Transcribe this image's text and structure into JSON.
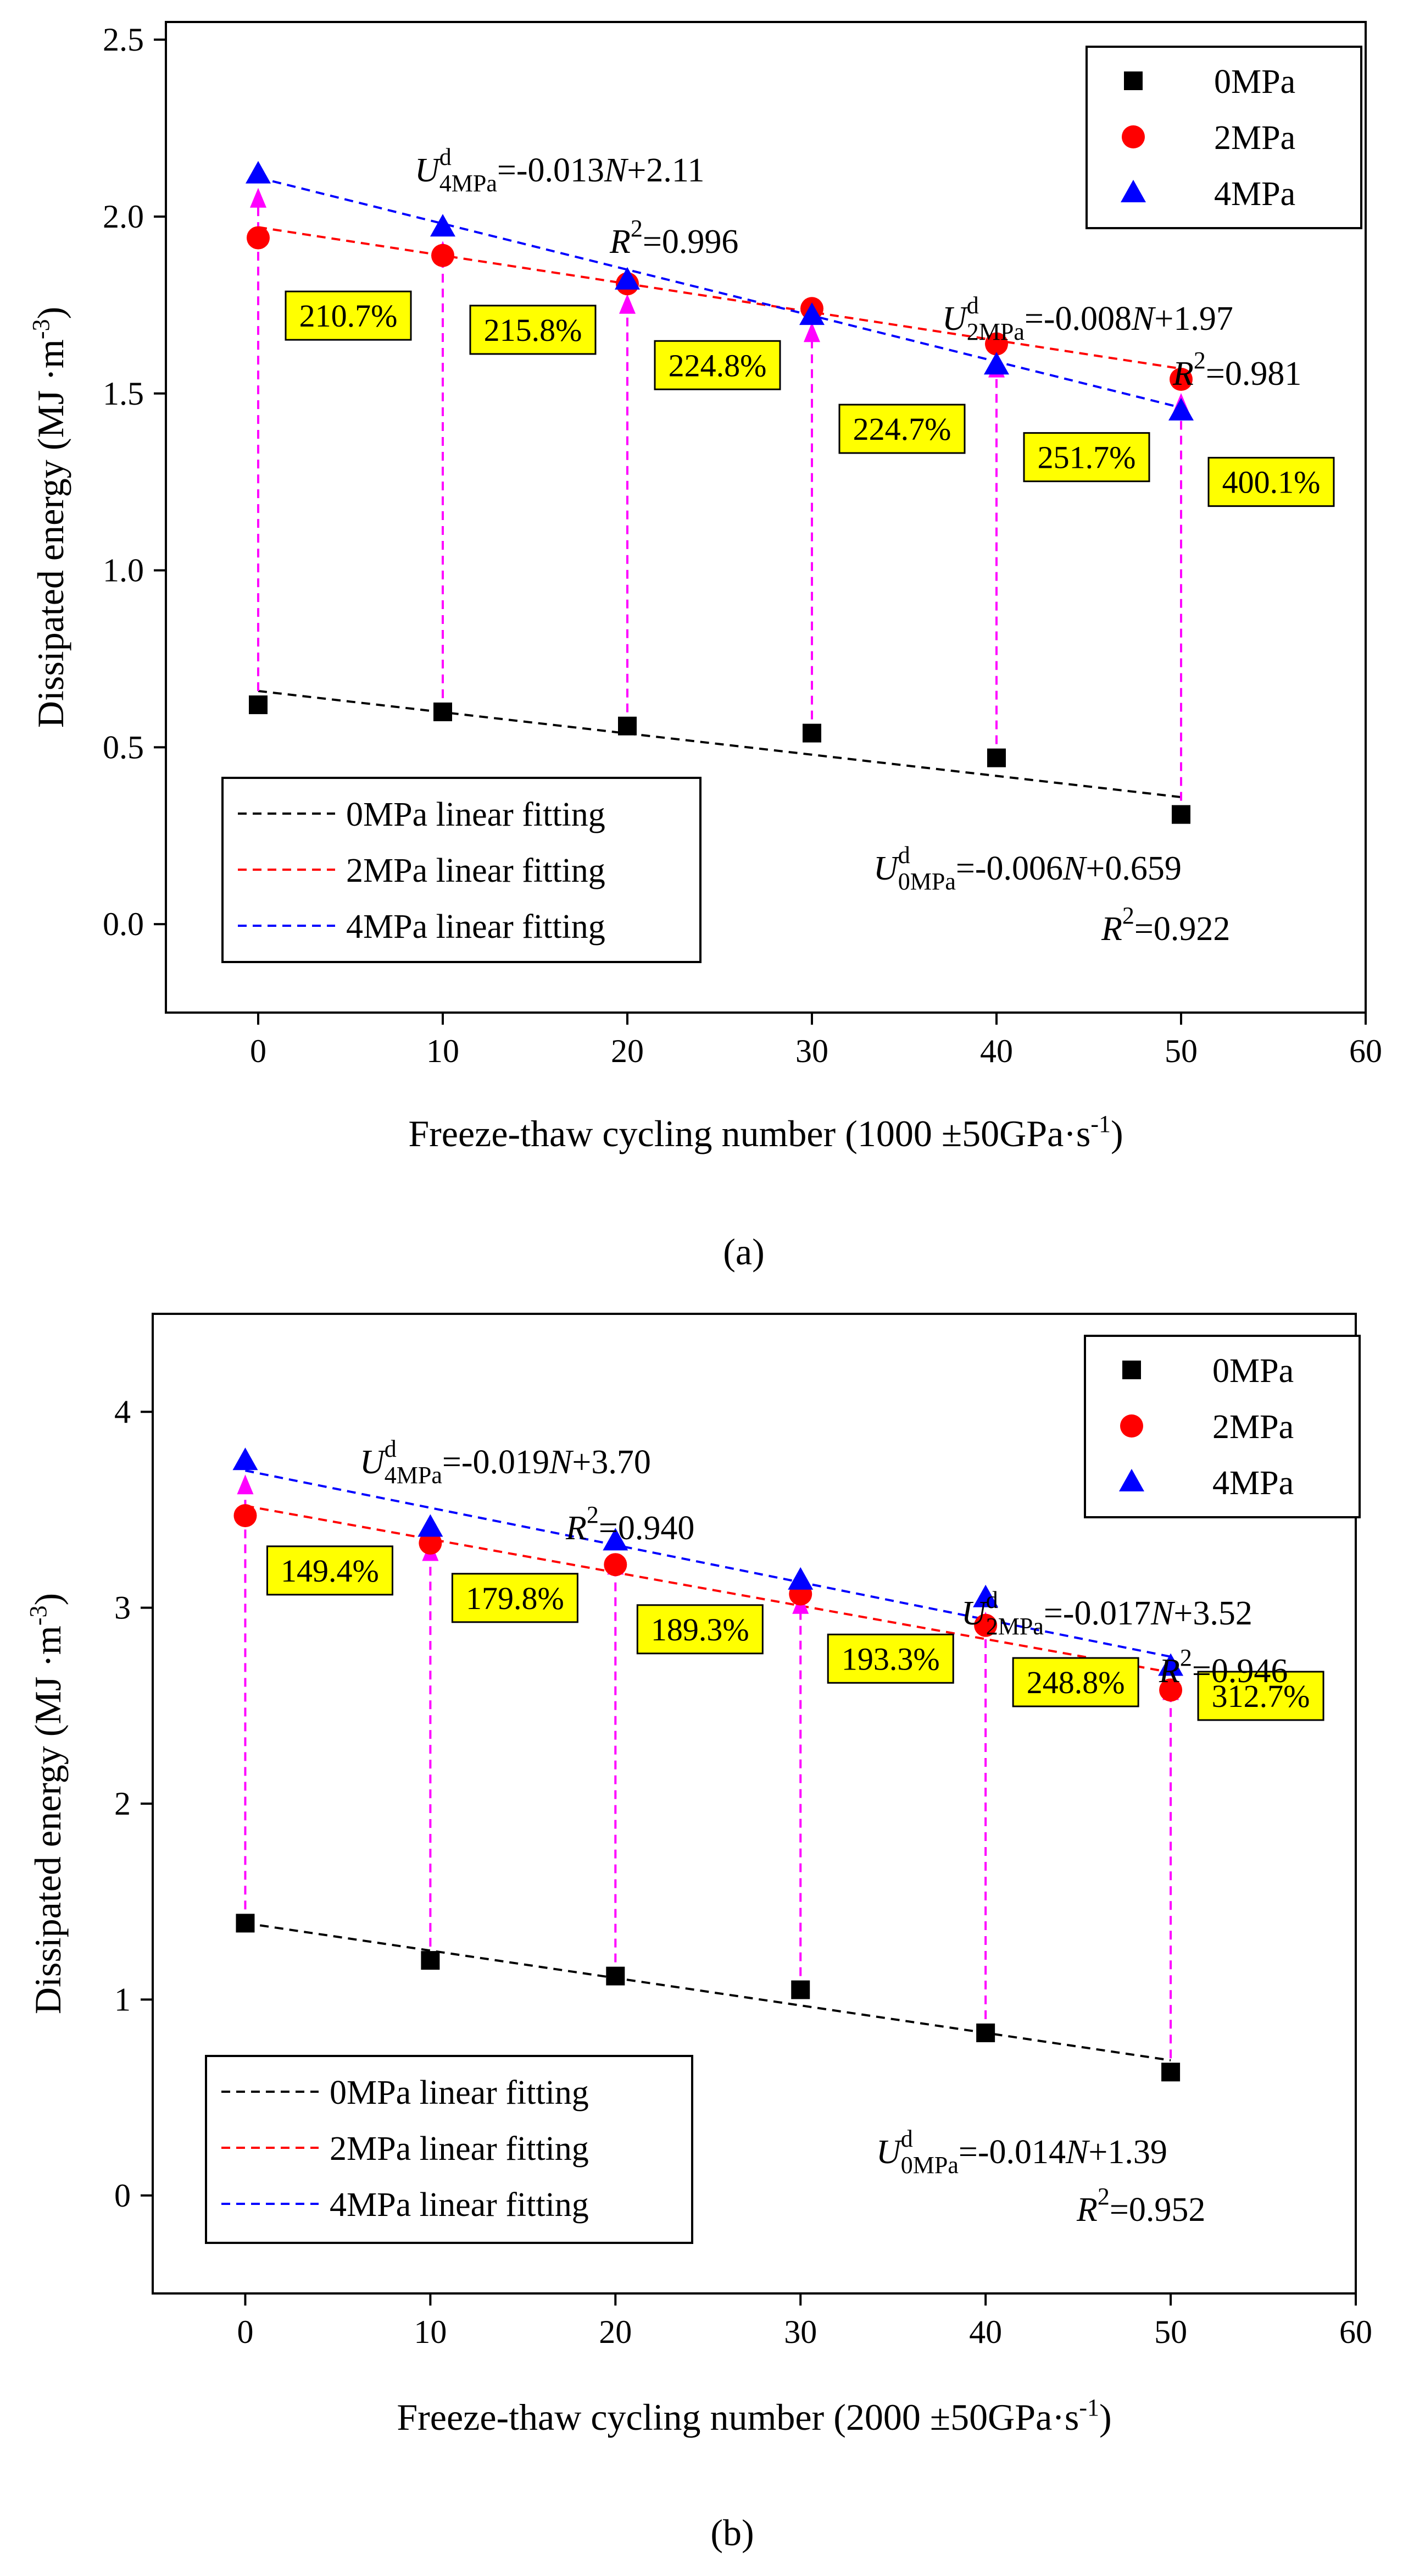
{
  "chart_data": [
    {
      "type": "scatter",
      "panel": "a",
      "caption": "(a)",
      "xlabel": "Freeze-thaw cycling number (1000 ±50GPa·s",
      "xlabel_sup": "-1",
      "xlabel_close": ")",
      "ylabel": "Dissipated energy (MJ ·m",
      "ylabel_sup": "-3",
      "ylabel_close": ")",
      "xlim": [
        -5,
        60
      ],
      "ylim": [
        -0.25,
        2.55
      ],
      "xticks": [
        0,
        10,
        20,
        30,
        40,
        50,
        60
      ],
      "xtick_labels": [
        "0",
        "10",
        "20",
        "30",
        "40",
        "50",
        "60"
      ],
      "yticks": [
        0.0,
        0.5,
        1.0,
        1.5,
        2.0,
        2.5
      ],
      "ytick_labels": [
        "0.0",
        "0.5",
        "1.0",
        "1.5",
        "2.0",
        "2.5"
      ],
      "x": [
        0,
        10,
        20,
        30,
        40,
        50
      ],
      "series": [
        {
          "name": "0MPa",
          "marker": "square",
          "color": "#000000",
          "values": [
            0.62,
            0.6,
            0.56,
            0.54,
            0.47,
            0.31
          ]
        },
        {
          "name": "2MPa",
          "marker": "circle",
          "color": "#ff0000",
          "values": [
            1.94,
            1.89,
            1.81,
            1.74,
            1.64,
            1.54
          ]
        },
        {
          "name": "4MPa",
          "marker": "triangle",
          "color": "#0000ff",
          "values": [
            2.12,
            1.97,
            1.82,
            1.72,
            1.58,
            1.45
          ]
        }
      ],
      "fits": [
        {
          "name": "0MPa linear fitting",
          "color": "#000000",
          "slope": -0.006,
          "intercept": 0.659
        },
        {
          "name": "2MPa linear fitting",
          "color": "#ff0000",
          "slope": -0.008,
          "intercept": 1.97
        },
        {
          "name": "4MPa linear fitting",
          "color": "#0000ff",
          "slope": -0.013,
          "intercept": 2.11
        }
      ],
      "increases": [
        "210.7%",
        "215.8%",
        "224.8%",
        "224.7%",
        "251.7%",
        "400.1%"
      ],
      "equations": [
        {
          "sub": "4MPa",
          "rhs": "=-0.013",
          "n": "N",
          "tail": "+2.11",
          "r2": "=0.996"
        },
        {
          "sub": "2MPa",
          "rhs": "=-0.008",
          "n": "N",
          "tail": "+1.97",
          "r2": "=0.981"
        },
        {
          "sub": "0MPa",
          "rhs": "=-0.006",
          "n": "N",
          "tail": "+0.659",
          "r2": "=0.922"
        }
      ]
    },
    {
      "type": "scatter",
      "panel": "b",
      "caption": "(b)",
      "xlabel": "Freeze-thaw cycling number (2000 ±50GPa·s",
      "xlabel_sup": "-1",
      "xlabel_close": ")",
      "ylabel": "Dissipated energy (MJ ·m",
      "ylabel_sup": "-3",
      "ylabel_close": ")",
      "xlim": [
        -5,
        60
      ],
      "ylim": [
        -0.5,
        4.5
      ],
      "xticks": [
        0,
        10,
        20,
        30,
        40,
        50,
        60
      ],
      "xtick_labels": [
        "0",
        "10",
        "20",
        "30",
        "40",
        "50",
        "60"
      ],
      "yticks": [
        0,
        1,
        2,
        3,
        4
      ],
      "ytick_labels": [
        "0",
        "1",
        "2",
        "3",
        "4"
      ],
      "x": [
        0,
        10,
        20,
        30,
        40,
        50
      ],
      "series": [
        {
          "name": "0MPa",
          "marker": "square",
          "color": "#000000",
          "values": [
            1.39,
            1.2,
            1.12,
            1.05,
            0.83,
            0.63
          ]
        },
        {
          "name": "2MPa",
          "marker": "circle",
          "color": "#ff0000",
          "values": [
            3.47,
            3.33,
            3.22,
            3.07,
            2.91,
            2.58
          ]
        },
        {
          "name": "4MPa",
          "marker": "triangle",
          "color": "#0000ff",
          "values": [
            3.75,
            3.41,
            3.34,
            3.14,
            3.05,
            2.7
          ]
        }
      ],
      "fits": [
        {
          "name": "0MPa linear fitting",
          "color": "#000000",
          "slope": -0.014,
          "intercept": 1.39
        },
        {
          "name": "2MPa linear fitting",
          "color": "#ff0000",
          "slope": -0.017,
          "intercept": 3.52
        },
        {
          "name": "4MPa linear fitting",
          "color": "#0000ff",
          "slope": -0.019,
          "intercept": 3.7
        }
      ],
      "increases": [
        "149.4%",
        "179.8%",
        "189.3%",
        "193.3%",
        "248.8%",
        "312.7%"
      ],
      "equations": [
        {
          "sub": "4MPa",
          "rhs": "=-0.019",
          "n": "N",
          "tail": "+3.70",
          "r2": "=0.940"
        },
        {
          "sub": "2MPa",
          "rhs": "=-0.017",
          "n": "N",
          "tail": "+3.52",
          "r2": "=0.946"
        },
        {
          "sub": "0MPa",
          "rhs": "=-0.014",
          "n": "N",
          "tail": "+1.39",
          "r2": "=0.952"
        }
      ]
    }
  ],
  "symbols": {
    "energy": "U",
    "energy_sup": "d",
    "r": "R",
    "r_sup": "2"
  },
  "colors": {
    "arrow": "#ff00ff",
    "label_box": "#ffff00"
  }
}
